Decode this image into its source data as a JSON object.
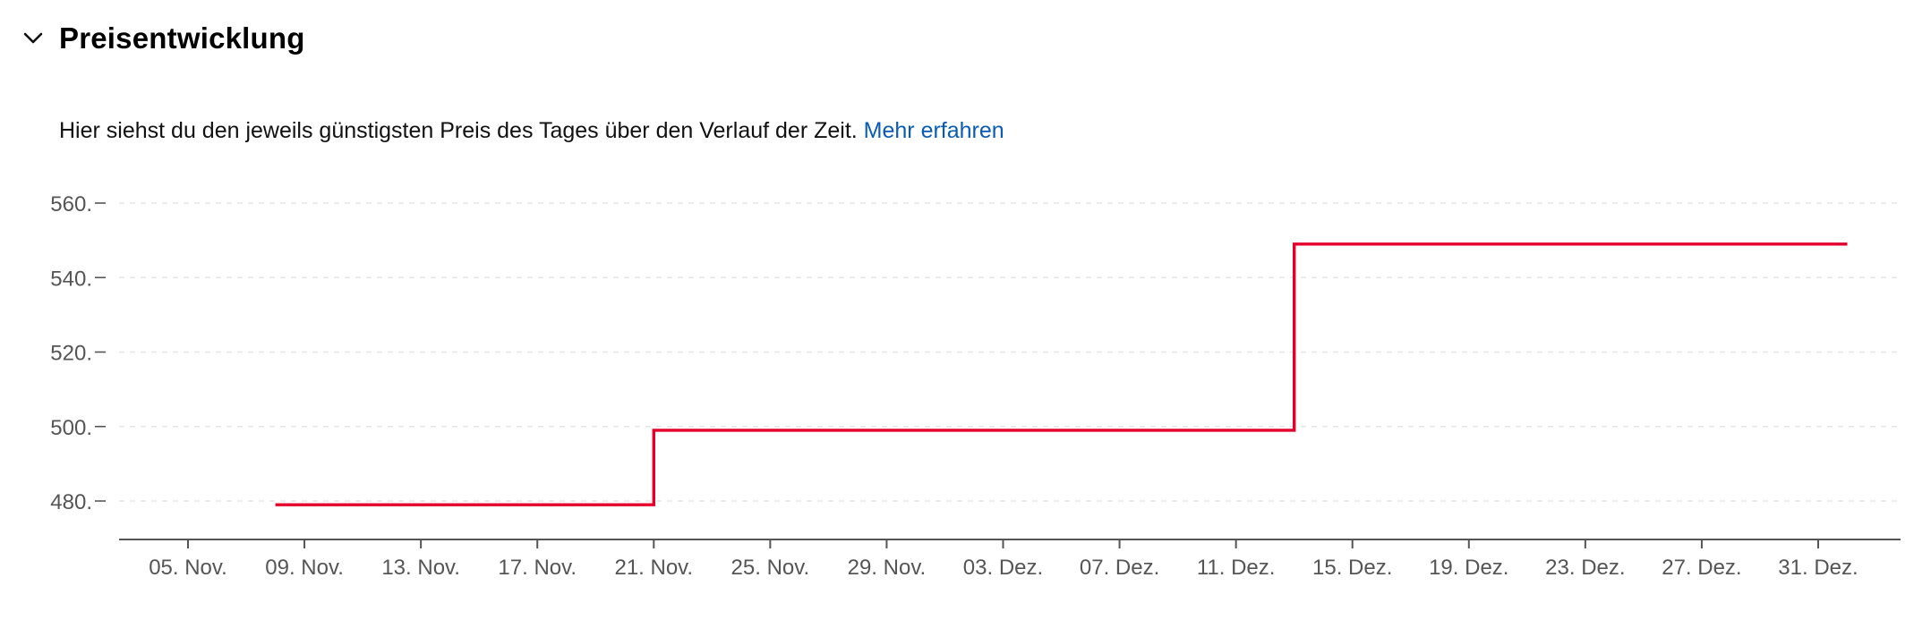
{
  "section": {
    "title": "Preisentwicklung",
    "toggle_icon": "chevron-down-icon"
  },
  "description": {
    "text": "Hier siehst du den jeweils günstigsten Preis des Tages über den Verlauf der Zeit.",
    "link_label": "Mehr erfahren"
  },
  "colors": {
    "line": "#e4002b",
    "link": "#0a5bb5",
    "axis": "#555555",
    "tick_label": "#555555",
    "grid": "#e6e6e6"
  },
  "chart_data": {
    "type": "line",
    "step": true,
    "title": "",
    "xlabel": "",
    "ylabel": "",
    "x_ticks": [
      "05. Nov.",
      "09. Nov.",
      "13. Nov.",
      "17. Nov.",
      "21. Nov.",
      "25. Nov.",
      "29. Nov.",
      "03. Dez.",
      "07. Dez.",
      "11. Dez.",
      "15. Dez.",
      "19. Dez.",
      "23. Dez.",
      "27. Dez.",
      "31. Dez."
    ],
    "x_range": [
      "2023-11-04",
      "2024-01-04"
    ],
    "y_ticks": [
      "480.",
      "500.",
      "520.",
      "540.",
      "560."
    ],
    "y_tick_values": [
      480,
      500,
      520,
      540,
      560
    ],
    "ylim": [
      470,
      563
    ],
    "grid": true,
    "series": [
      {
        "points": [
          {
            "x": "2023-11-08",
            "y": 479
          },
          {
            "x": "2023-11-21",
            "y": 479
          },
          {
            "x": "2023-11-21",
            "y": 499
          },
          {
            "x": "2023-12-13",
            "y": 499
          },
          {
            "x": "2023-12-13",
            "y": 549
          },
          {
            "x": "2024-01-01",
            "y": 549
          }
        ]
      }
    ]
  }
}
